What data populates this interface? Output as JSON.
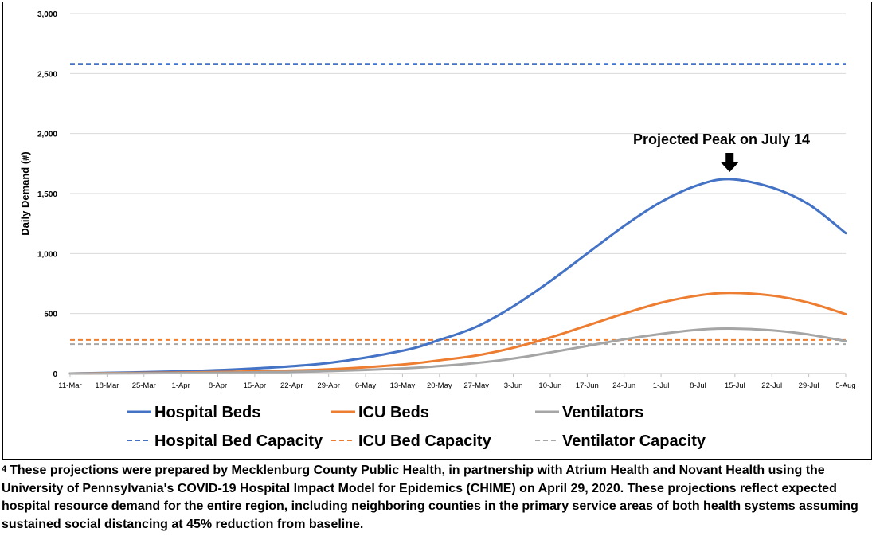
{
  "chart_data": {
    "type": "line",
    "ylabel": "Daily Demand (#)",
    "ylim": [
      0,
      3000
    ],
    "yticks": [
      "0",
      "500",
      "1,000",
      "1,500",
      "2,000",
      "2,500",
      "3,000"
    ],
    "ytick_values": [
      0,
      500,
      1000,
      1500,
      2000,
      2500,
      3000
    ],
    "x_tick_labels": [
      "11-Mar",
      "18-Mar",
      "25-Mar",
      "1-Apr",
      "8-Apr",
      "15-Apr",
      "22-Apr",
      "29-Apr",
      "6-May",
      "13-May",
      "20-May",
      "27-May",
      "3-Jun",
      "10-Jun",
      "17-Jun",
      "24-Jun",
      "1-Jul",
      "8-Jul",
      "15-Jul",
      "22-Jul",
      "29-Jul",
      "5-Aug"
    ],
    "grid": true,
    "legend_position": "bottom",
    "annotation": {
      "text": "Projected Peak on July 14",
      "x": "14-Jul"
    },
    "series": [
      {
        "name": "Hospital Beds",
        "color": "#4472C4",
        "style": "solid",
        "points": [
          [
            "11-Mar",
            0
          ],
          [
            "1-Apr",
            18
          ],
          [
            "15-Apr",
            42
          ],
          [
            "29-Apr",
            88
          ],
          [
            "13-May",
            190
          ],
          [
            "20-May",
            280
          ],
          [
            "27-May",
            390
          ],
          [
            "3-Jun",
            560
          ],
          [
            "10-Jun",
            770
          ],
          [
            "17-Jun",
            1000
          ],
          [
            "24-Jun",
            1230
          ],
          [
            "1-Jul",
            1430
          ],
          [
            "8-Jul",
            1570
          ],
          [
            "14-Jul",
            1620
          ],
          [
            "22-Jul",
            1550
          ],
          [
            "29-Jul",
            1410
          ],
          [
            "5-Aug",
            1170
          ]
        ]
      },
      {
        "name": "ICU Beds",
        "color": "#ED7D31",
        "style": "solid",
        "points": [
          [
            "11-Mar",
            0
          ],
          [
            "1-Apr",
            8
          ],
          [
            "15-Apr",
            18
          ],
          [
            "29-Apr",
            35
          ],
          [
            "13-May",
            75
          ],
          [
            "20-May",
            110
          ],
          [
            "27-May",
            150
          ],
          [
            "3-Jun",
            215
          ],
          [
            "10-Jun",
            300
          ],
          [
            "17-Jun",
            400
          ],
          [
            "24-Jun",
            500
          ],
          [
            "1-Jul",
            590
          ],
          [
            "8-Jul",
            650
          ],
          [
            "14-Jul",
            672
          ],
          [
            "22-Jul",
            650
          ],
          [
            "29-Jul",
            590
          ],
          [
            "5-Aug",
            495
          ]
        ]
      },
      {
        "name": "Ventilators",
        "color": "#A5A5A5",
        "style": "solid",
        "points": [
          [
            "11-Mar",
            0
          ],
          [
            "1-Apr",
            4
          ],
          [
            "15-Apr",
            10
          ],
          [
            "29-Apr",
            20
          ],
          [
            "13-May",
            42
          ],
          [
            "20-May",
            62
          ],
          [
            "27-May",
            88
          ],
          [
            "3-Jun",
            125
          ],
          [
            "10-Jun",
            175
          ],
          [
            "17-Jun",
            230
          ],
          [
            "24-Jun",
            285
          ],
          [
            "1-Jul",
            330
          ],
          [
            "8-Jul",
            365
          ],
          [
            "14-Jul",
            375
          ],
          [
            "22-Jul",
            360
          ],
          [
            "29-Jul",
            325
          ],
          [
            "5-Aug",
            270
          ]
        ]
      },
      {
        "name": "Hospital Bed Capacity",
        "color": "#4472C4",
        "style": "dashed",
        "constant": 2580
      },
      {
        "name": "ICU Bed Capacity",
        "color": "#ED7D31",
        "style": "dashed",
        "constant": 280
      },
      {
        "name": "Ventilator Capacity",
        "color": "#A5A5A5",
        "style": "dashed",
        "constant": 245
      }
    ]
  },
  "footnote": {
    "marker": "4",
    "text": "These projections were prepared by Mecklenburg County Public Health, in partnership with Atrium Health and Novant Health using the University of Pennsylvania's COVID-19 Hospital Impact Model for Epidemics (CHIME) on April 29, 2020. These projections reflect expected hospital resource demand for the entire region, including neighboring counties in the primary service areas of both health systems assuming sustained social distancing at 45% reduction from baseline."
  }
}
